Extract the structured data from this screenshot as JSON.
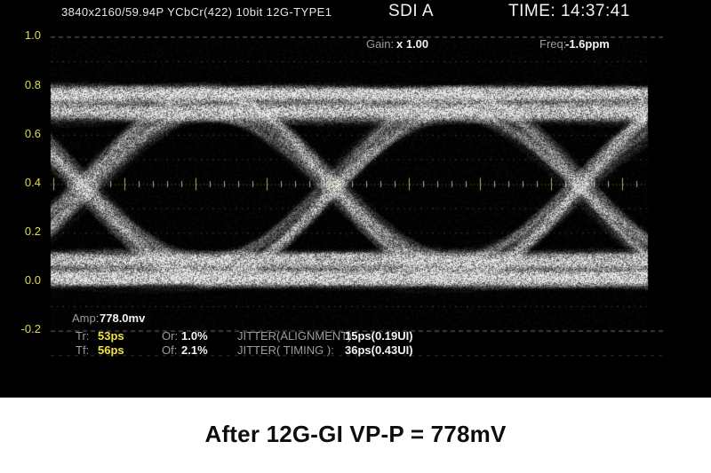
{
  "screen": {
    "header": {
      "format_info": "3840x2160/59.94P YCbCr(422) 10bit 12G-TYPE1",
      "input_label": "SDI A",
      "time_label": "TIME: 14:37:41"
    },
    "readouts": {
      "gain_label": "Gain:",
      "gain_value": "x 1.00",
      "freq_label": "Freq:",
      "freq_value": "-1.6ppm"
    },
    "y_axis": {
      "labels": [
        "1.0",
        "0.8",
        "0.6",
        "0.4",
        "0.2",
        "0.0",
        "-0.2"
      ]
    },
    "measurements": {
      "amp_label": "Amp:",
      "amp_value": "778.0mv",
      "tr_label": "Tr:",
      "tr_value": "53ps",
      "tf_label": "Tf:",
      "tf_value": "56ps",
      "or_label": "Or:",
      "or_value": "1.0%",
      "of_label": "Of:",
      "of_value": "2.1%",
      "jitter_alignment_label": "JITTER(ALIGNMENT):",
      "jitter_alignment_value": "15ps(0.19UI)",
      "jitter_timing_label": "JITTER( TIMING ):",
      "jitter_timing_value": "36ps(0.43UI)"
    },
    "colors": {
      "screen_bg": "#000000",
      "text_white": "#f2f2f2",
      "text_gray": "#9c9c9c",
      "accent_yellow": "#f0e23a",
      "axis_yellow": "#dcdc4e"
    }
  },
  "caption": {
    "text": "After 12G-GI VP-P = 778mV"
  }
}
